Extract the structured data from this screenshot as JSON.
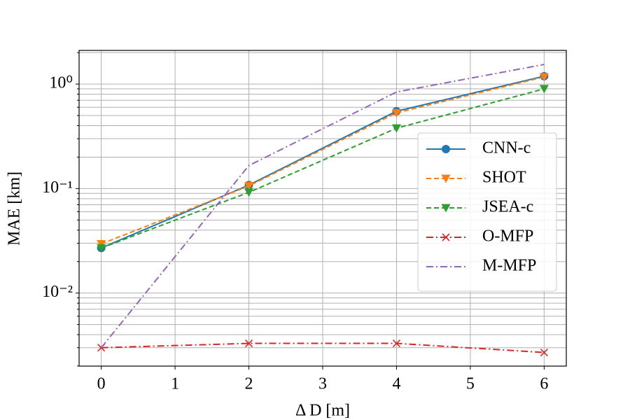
{
  "chart_data": {
    "type": "line",
    "x_label": "Δ D [m]",
    "y_label": "MAE [km]",
    "y_scale": "log",
    "grid": true,
    "legend_position": "right",
    "xlim": [
      -0.3,
      6.3
    ],
    "xticks": [
      0,
      1,
      2,
      3,
      4,
      5,
      6
    ],
    "ylim": [
      0.002,
      2.1
    ],
    "yticks": [
      {
        "value": 0.01,
        "label": "10⁻²"
      },
      {
        "value": 0.1,
        "label": "10⁻¹"
      },
      {
        "value": 1,
        "label": "10⁰"
      }
    ],
    "yminor_ticks": [
      0.002,
      0.003,
      0.004,
      0.005,
      0.006,
      0.007,
      0.008,
      0.009,
      0.02,
      0.03,
      0.04,
      0.05,
      0.06,
      0.07,
      0.08,
      0.09,
      0.2,
      0.3,
      0.4,
      0.5,
      0.6,
      0.7,
      0.8,
      0.9,
      2
    ],
    "x": [
      0,
      2,
      4,
      6
    ],
    "series": [
      {
        "name": "CNN-c",
        "color": "#1f77b4",
        "marker": "circle",
        "dash": "solid",
        "values": [
          0.027,
          0.108,
          0.55,
          1.19
        ]
      },
      {
        "name": "SHOT",
        "color": "#ff7f0e",
        "marker": "triangle-down",
        "dash": "dashed",
        "values": [
          0.0295,
          0.106,
          0.53,
          1.17
        ]
      },
      {
        "name": "JSEA-c",
        "color": "#2ca02c",
        "marker": "triangle-down",
        "dash": "dashed",
        "values": [
          0.027,
          0.092,
          0.378,
          0.9
        ]
      },
      {
        "name": "O-MFP",
        "color": "#d62728",
        "marker": "x",
        "dash": "dashdot",
        "values": [
          0.003,
          0.0033,
          0.0033,
          0.0027
        ]
      },
      {
        "name": "M-MFP",
        "color": "#9467bd",
        "marker": "none",
        "dash": "dashdot",
        "values": [
          0.003,
          0.166,
          0.84,
          1.54
        ]
      }
    ]
  }
}
